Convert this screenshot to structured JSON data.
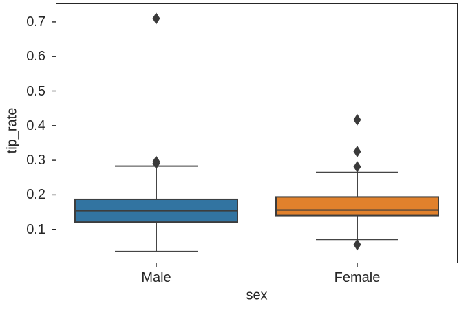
{
  "chart_data": {
    "type": "box",
    "title": "",
    "xlabel": "sex",
    "ylabel": "tip_rate",
    "categories": [
      "Male",
      "Female"
    ],
    "ytick_labels": [
      "0.1",
      "0.2",
      "0.3",
      "0.4",
      "0.5",
      "0.6",
      "0.7"
    ],
    "ylim": [
      0.002,
      0.7535
    ],
    "grid": false,
    "legend": "none",
    "orientation": "vertical",
    "flier_marker": "thin-diamond",
    "series": [
      {
        "name": "Male",
        "box_color": "#3274a1",
        "whisker_low": 0.036,
        "q1": 0.121,
        "median": 0.154,
        "q3": 0.187,
        "whisker_high": 0.283,
        "fliers": [
          0.291,
          0.296,
          0.71
        ]
      },
      {
        "name": "Female",
        "box_color": "#e1812c",
        "whisker_low": 0.071,
        "q1": 0.14,
        "median": 0.156,
        "q3": 0.194,
        "whisker_high": 0.265,
        "fliers": [
          0.281,
          0.325,
          0.417,
          0.056
        ]
      }
    ],
    "colors": {
      "whisker_line": "#454545",
      "box_edge": "#3d3d3d",
      "flier_fill": "#3a3a3a",
      "spine": "#262626",
      "text": "#262626"
    }
  }
}
